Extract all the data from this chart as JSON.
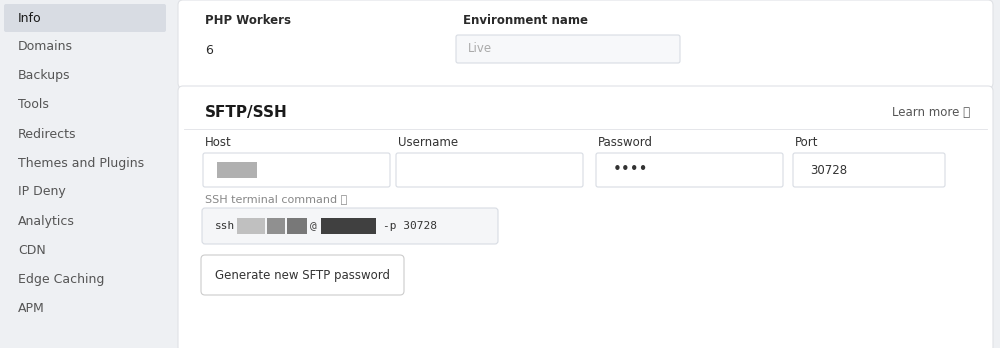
{
  "bg_color": "#eef0f3",
  "sidebar_bg": "#eef0f3",
  "sidebar_active_bg": "#d8dce3",
  "sidebar_active_text": "#1a1a1a",
  "sidebar_text_color": "#555555",
  "sidebar_items": [
    "Info",
    "Domains",
    "Backups",
    "Tools",
    "Redirects",
    "Themes and Plugins",
    "IP Deny",
    "Analytics",
    "CDN",
    "Edge Caching",
    "APM"
  ],
  "sidebar_active": "Info",
  "panel_bg": "#ffffff",
  "panel_border": "#e0e2e6",
  "top_panel_labels": [
    "PHP Workers",
    "Environment name"
  ],
  "top_panel_values": [
    "6",
    "Live"
  ],
  "sftp_title": "SFTP/SSH",
  "learn_more": "Learn more ⓘ",
  "field_labels": [
    "Host",
    "Username",
    "Password",
    "Port"
  ],
  "password_dots": "••••",
  "port_value": "30728",
  "ssh_label": "SSH terminal command",
  "ssh_command_suffix": "-p 30728",
  "btn_label": "Generate new SFTP password",
  "btn_border": "#cccccc",
  "btn_bg": "#ffffff",
  "field_bg": "#ffffff",
  "field_border": "#d8dce3",
  "ssh_box_bg": "#f5f6f8",
  "redact_light": "#b0b0b0",
  "redact_mid": "#888888",
  "redact_dark": "#444444",
  "redact_darker": "#222222"
}
